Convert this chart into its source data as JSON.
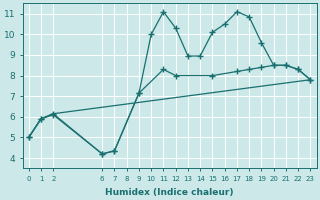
{
  "xlabel": "Humidex (Indice chaleur)",
  "bg_color": "#cce8e8",
  "grid_color": "#ffffff",
  "line_color": "#1a7070",
  "xlim": [
    -0.5,
    23.5
  ],
  "ylim": [
    3.5,
    11.5
  ],
  "xticks": [
    0,
    1,
    2,
    6,
    7,
    8,
    9,
    10,
    11,
    12,
    13,
    14,
    15,
    16,
    17,
    18,
    19,
    20,
    21,
    22,
    23
  ],
  "yticks": [
    4,
    5,
    6,
    7,
    8,
    9,
    10,
    11
  ],
  "line1_x": [
    0,
    1,
    2,
    6,
    7,
    9,
    10,
    11,
    12,
    13,
    14,
    15,
    16,
    17,
    18,
    19,
    20,
    21,
    22,
    23
  ],
  "line1_y": [
    5.0,
    5.9,
    6.1,
    4.2,
    4.35,
    7.15,
    10.0,
    11.1,
    10.3,
    8.95,
    8.95,
    10.1,
    10.5,
    11.1,
    10.85,
    9.6,
    8.5,
    8.5,
    8.3,
    7.8
  ],
  "line2_x": [
    0,
    1,
    2,
    6,
    7,
    9,
    11,
    12,
    15,
    17,
    18,
    19,
    20,
    21,
    22,
    23
  ],
  "line2_y": [
    5.0,
    5.9,
    6.15,
    4.2,
    4.35,
    7.15,
    8.3,
    8.0,
    8.0,
    8.2,
    8.3,
    8.4,
    8.5,
    8.5,
    8.3,
    7.8
  ],
  "line3_x": [
    0,
    1,
    2,
    23
  ],
  "line3_y": [
    5.0,
    5.9,
    6.15,
    7.8
  ]
}
